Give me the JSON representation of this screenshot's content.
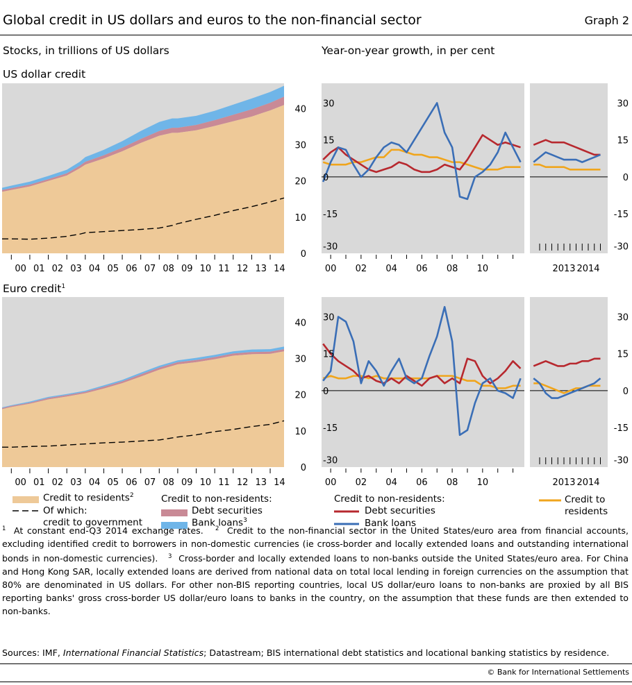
{
  "header": {
    "title": "Global credit in US dollars and euros to the non-financial sector",
    "graph_number": "Graph 2",
    "left_subtitle": "Stocks, in trillions of US dollars",
    "right_subtitle": "Year-on-year growth, in per cent",
    "usd_label": "US dollar credit",
    "eur_label": "Euro credit",
    "eur_label_sup": "1"
  },
  "legend": {
    "residents": "Credit to residents",
    "residents_sup": "2",
    "of_which_1": "Of which:",
    "of_which_2": "credit to government",
    "nonres_title": "Credit to non-residents:",
    "debt": "Debt securities",
    "bank": "Bank loans",
    "bank_sup": "3",
    "growth_nonres_title": "Credit to non-residents:",
    "growth_debt": "Debt securities",
    "growth_bank": "Bank loans",
    "growth_res_1": "Credit to",
    "growth_res_2": "residents"
  },
  "colors": {
    "residents": "#eec998",
    "debt": "#c98a96",
    "bank": "#6fb5e8",
    "line_debt": "#b7282e",
    "line_bank": "#3a6eb6",
    "line_res": "#f0a51c",
    "panel_bg": "#d9d9d9"
  },
  "footnotes": {
    "n1_mark": "1",
    "n1": "At constant end-Q3 2014 exchange rates.",
    "n2_mark": "2",
    "n2": "Credit to the non-financial sector in the United States/euro area from financial accounts, excluding identified credit to borrowers in non-domestic currencies (ie cross-border and locally extended loans and outstanding international bonds in non-domestic currencies).",
    "n3_mark": "3",
    "n3": "Cross-border and locally extended loans to non-banks outside the United States/euro area. For China and Hong Kong SAR, locally extended loans are derived from national data on total local lending in foreign currencies on the assumption that 80% are denominated in US dollars. For other non-BIS reporting countries, local US dollar/euro loans to non-banks are proxied by all BIS reporting banks' gross cross-border US dollar/euro loans to banks in the country, on the assumption that these funds are then extended to non-banks.",
    "sources_prefix": "Sources: IMF, ",
    "sources_italic": "International Financial Statistics",
    "sources_suffix": "; Datastream; BIS international debt statistics and locational banking statistics by residence.",
    "copyright": "© Bank for International Settlements"
  },
  "chart_data": [
    {
      "id": "usd_stocks",
      "type": "area",
      "x_tick_labels": [
        "00",
        "01",
        "02",
        "03",
        "04",
        "05",
        "06",
        "07",
        "08",
        "09",
        "10",
        "11",
        "12",
        "13",
        "14"
      ],
      "y_ticks": [
        0,
        10,
        20,
        30,
        40
      ],
      "ylim": [
        0,
        47
      ],
      "xlim": [
        1999.5,
        2014.75
      ],
      "x": [
        1999.5,
        2000,
        2001,
        2002,
        2003,
        2003.7,
        2004,
        2005,
        2006,
        2007,
        2008,
        2008.7,
        2009,
        2010,
        2011,
        2012,
        2013,
        2014,
        2014.75
      ],
      "series": [
        {
          "name": "Credit to residents",
          "values": [
            17.0,
            17.5,
            18.5,
            20.0,
            21.5,
            23.5,
            24.5,
            26.2,
            28.2,
            30.5,
            32.5,
            33.3,
            33.3,
            34.0,
            35.2,
            36.5,
            37.8,
            39.5,
            41.0
          ]
        },
        {
          "name": "Debt securities",
          "values": [
            0.5,
            0.5,
            0.5,
            0.5,
            0.6,
            0.7,
            0.8,
            0.9,
            1.0,
            1.1,
            1.3,
            1.4,
            1.4,
            1.5,
            1.6,
            1.8,
            2.0,
            2.1,
            2.3
          ]
        },
        {
          "name": "Bank loans",
          "values": [
            0.6,
            0.7,
            0.8,
            0.9,
            1.0,
            1.1,
            1.3,
            1.5,
            1.8,
            2.2,
            2.5,
            2.6,
            2.6,
            2.5,
            2.6,
            2.8,
            3.0,
            3.0,
            3.0
          ]
        },
        {
          "name": "credit to government",
          "values": [
            4.0,
            4.0,
            3.9,
            4.2,
            4.7,
            5.3,
            5.7,
            6.0,
            6.3,
            6.6,
            7.0,
            7.7,
            8.2,
            9.4,
            10.5,
            11.8,
            12.9,
            14.2,
            15.3
          ]
        }
      ]
    },
    {
      "id": "usd_growth_long",
      "type": "line",
      "x_tick_labels": [
        "00",
        "02",
        "04",
        "06",
        "08",
        "10"
      ],
      "x_ticks": [
        2000,
        2002,
        2004,
        2006,
        2008,
        2010
      ],
      "y_ticks": [
        -30,
        -15,
        0,
        15,
        30
      ],
      "ylim": [
        -31,
        38
      ],
      "xlim": [
        1999.4,
        2012.75
      ],
      "x": [
        1999.5,
        2000,
        2000.5,
        2001,
        2001.5,
        2002,
        2002.5,
        2003,
        2003.5,
        2004,
        2004.5,
        2005,
        2005.5,
        2006,
        2006.5,
        2007,
        2007.5,
        2008,
        2008.5,
        2009,
        2009.5,
        2010,
        2010.5,
        2011,
        2011.5,
        2012,
        2012.5
      ],
      "series": [
        {
          "name": "Debt securities",
          "values": [
            7,
            10,
            12,
            9,
            7,
            5,
            3,
            2,
            3,
            4,
            6,
            5,
            3,
            2,
            2,
            3,
            5,
            4,
            3,
            7,
            12,
            17,
            15,
            13,
            14,
            13,
            12
          ]
        },
        {
          "name": "Bank loans",
          "values": [
            -2,
            6,
            12,
            11,
            5,
            0,
            3,
            8,
            12,
            14,
            13,
            10,
            15,
            20,
            25,
            30,
            18,
            12,
            -8,
            -9,
            0,
            2,
            5,
            10,
            18,
            12,
            6
          ]
        },
        {
          "name": "Credit to residents",
          "values": [
            6,
            5,
            5,
            5,
            6,
            6,
            7,
            8,
            8,
            11,
            11,
            10,
            9,
            9,
            8,
            8,
            7,
            6,
            6,
            5,
            4,
            3,
            3,
            3,
            4,
            4,
            4
          ]
        }
      ]
    },
    {
      "id": "usd_growth_recent",
      "type": "line",
      "x_tick_labels": [
        "2013",
        "2014"
      ],
      "x_ticks": [
        2013,
        2014
      ],
      "y_ticks": [
        -30,
        -15,
        0,
        15,
        30
      ],
      "ylim": [
        -31,
        38
      ],
      "xlim": [
        2011.6,
        2014.8
      ],
      "x": [
        2011.75,
        2012,
        2012.25,
        2012.5,
        2012.75,
        2013,
        2013.25,
        2013.5,
        2013.75,
        2014,
        2014.25,
        2014.5
      ],
      "series": [
        {
          "name": "Debt securities",
          "values": [
            13,
            14,
            15,
            14,
            14,
            14,
            13,
            12,
            11,
            10,
            9,
            9
          ]
        },
        {
          "name": "Bank loans",
          "values": [
            6,
            8,
            10,
            9,
            8,
            7,
            7,
            7,
            6,
            7,
            8,
            9
          ]
        },
        {
          "name": "Credit to residents",
          "values": [
            5,
            5,
            4,
            4,
            4,
            4,
            3,
            3,
            3,
            3,
            3,
            3
          ]
        }
      ]
    },
    {
      "id": "eur_stocks",
      "type": "area",
      "x_tick_labels": [
        "00",
        "01",
        "02",
        "03",
        "04",
        "05",
        "06",
        "07",
        "08",
        "09",
        "10",
        "11",
        "12",
        "13",
        "14"
      ],
      "y_ticks": [
        0,
        10,
        20,
        30,
        40
      ],
      "ylim": [
        0,
        47
      ],
      "xlim": [
        1999.5,
        2014.75
      ],
      "x": [
        1999.5,
        2000,
        2001,
        2002,
        2003,
        2004,
        2005,
        2006,
        2007,
        2008,
        2009,
        2010,
        2011,
        2012,
        2013,
        2014,
        2014.75
      ],
      "series": [
        {
          "name": "Credit to residents",
          "values": [
            16.0,
            16.6,
            17.5,
            18.7,
            19.5,
            20.4,
            21.7,
            23.2,
            25.0,
            26.9,
            28.4,
            29.0,
            29.8,
            30.8,
            31.2,
            31.3,
            32.0
          ]
        },
        {
          "name": "Debt securities",
          "values": [
            0.3,
            0.3,
            0.3,
            0.4,
            0.4,
            0.4,
            0.5,
            0.5,
            0.6,
            0.6,
            0.6,
            0.6,
            0.6,
            0.6,
            0.6,
            0.6,
            0.6
          ]
        },
        {
          "name": "Bank loans",
          "values": [
            0.2,
            0.2,
            0.3,
            0.3,
            0.3,
            0.3,
            0.4,
            0.4,
            0.5,
            0.5,
            0.5,
            0.6,
            0.6,
            0.6,
            0.7,
            0.7,
            0.7
          ]
        },
        {
          "name": "credit to government",
          "values": [
            5.5,
            5.5,
            5.7,
            5.8,
            6.1,
            6.4,
            6.7,
            6.9,
            7.2,
            7.5,
            8.3,
            8.9,
            9.8,
            10.4,
            11.2,
            11.8,
            12.8
          ]
        }
      ]
    },
    {
      "id": "eur_growth_long",
      "type": "line",
      "x_tick_labels": [
        "00",
        "02",
        "04",
        "06",
        "08",
        "10"
      ],
      "x_ticks": [
        2000,
        2002,
        2004,
        2006,
        2008,
        2010
      ],
      "y_ticks": [
        -30,
        -15,
        0,
        15,
        30
      ],
      "ylim": [
        -31,
        38
      ],
      "xlim": [
        1999.4,
        2012.75
      ],
      "x": [
        1999.5,
        2000,
        2000.5,
        2001,
        2001.5,
        2002,
        2002.5,
        2003,
        2003.5,
        2004,
        2004.5,
        2005,
        2005.5,
        2006,
        2006.5,
        2007,
        2007.5,
        2008,
        2008.5,
        2009,
        2009.5,
        2010,
        2010.5,
        2011,
        2011.5,
        2012,
        2012.5
      ],
      "series": [
        {
          "name": "Debt securities",
          "values": [
            19,
            15,
            12,
            10,
            8,
            5,
            6,
            4,
            3,
            5,
            3,
            6,
            4,
            2,
            5,
            6,
            3,
            5,
            3,
            13,
            12,
            6,
            3,
            5,
            8,
            12,
            9
          ]
        },
        {
          "name": "Bank loans",
          "values": [
            4,
            8,
            30,
            28,
            20,
            3,
            12,
            8,
            2,
            8,
            13,
            5,
            3,
            5,
            14,
            22,
            34,
            20,
            -18,
            -16,
            -5,
            3,
            5,
            0,
            -1,
            -3,
            5
          ]
        },
        {
          "name": "Credit to residents",
          "values": [
            5,
            6,
            5,
            5,
            6,
            6,
            5,
            6,
            5,
            5,
            5,
            5,
            5,
            5,
            5,
            6,
            6,
            6,
            5,
            4,
            4,
            2,
            2,
            1,
            1,
            2,
            2
          ]
        }
      ]
    },
    {
      "id": "eur_growth_recent",
      "type": "line",
      "x_tick_labels": [
        "2013",
        "2014"
      ],
      "x_ticks": [
        2013,
        2014
      ],
      "y_ticks": [
        -30,
        -15,
        0,
        15,
        30
      ],
      "ylim": [
        -31,
        38
      ],
      "xlim": [
        2011.6,
        2014.8
      ],
      "x": [
        2011.75,
        2012,
        2012.25,
        2012.5,
        2012.75,
        2013,
        2013.25,
        2013.5,
        2013.75,
        2014,
        2014.25,
        2014.5
      ],
      "series": [
        {
          "name": "Debt securities",
          "values": [
            10,
            11,
            12,
            11,
            10,
            10,
            11,
            11,
            12,
            12,
            13,
            13
          ]
        },
        {
          "name": "Bank loans",
          "values": [
            5,
            3,
            -1,
            -3,
            -3,
            -2,
            -1,
            0,
            1,
            2,
            3,
            5
          ]
        },
        {
          "name": "Credit to residents",
          "values": [
            3,
            3,
            2,
            1,
            0,
            -1,
            0,
            1,
            1,
            2,
            2,
            2
          ]
        }
      ]
    }
  ]
}
